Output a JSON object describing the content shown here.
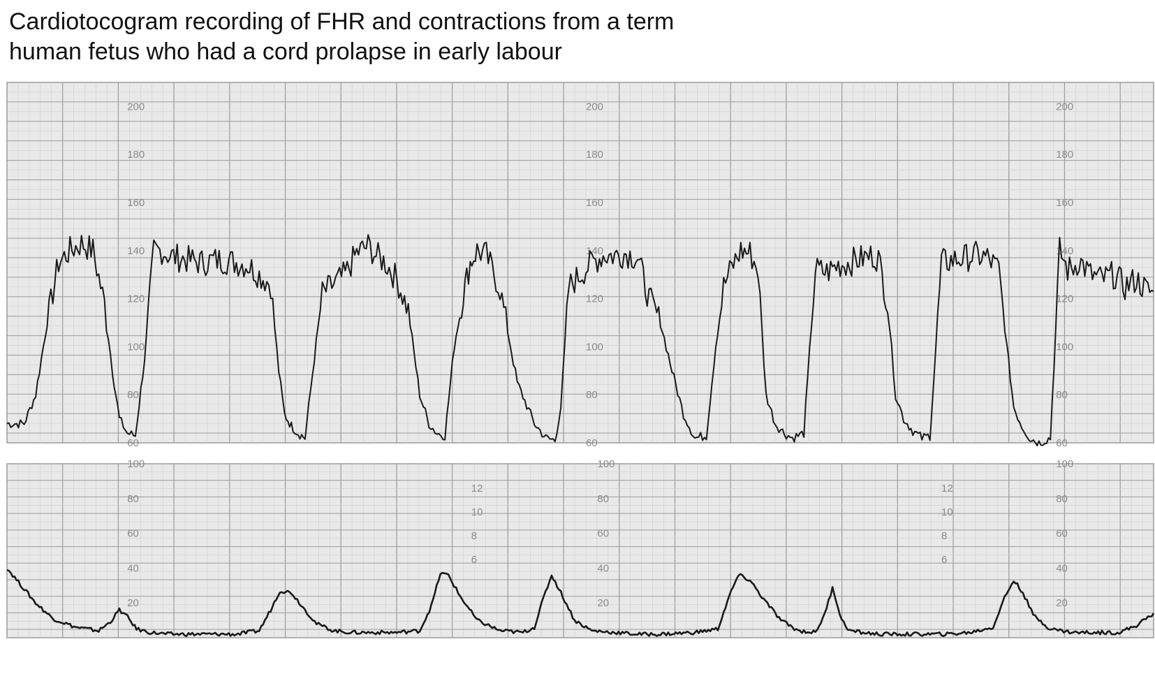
{
  "title_lines": [
    "Cardiotocogram recording of FHR and contractions from a term",
    "human fetus who had a cord prolapse in early labour"
  ],
  "colors": {
    "paper": "#e9e9e9",
    "grid_major": "#9a9a9a",
    "grid_minor": "#cfcfcf",
    "trace": "#1a1a1a",
    "tick_text": "#8a8a8a"
  },
  "chart_data": [
    {
      "type": "line",
      "name": "FHR",
      "ylim": [
        60,
        210
      ],
      "xlim": [
        0,
        100
      ],
      "tick_labels": [
        "200",
        "180",
        "160",
        "140",
        "120",
        "100",
        "80",
        "60"
      ],
      "tick_label_values": [
        200,
        180,
        160,
        140,
        120,
        100,
        80,
        60
      ],
      "tick_columns_x": [
        10,
        50,
        91
      ],
      "x": [
        0,
        1.5,
        2.5,
        3.5,
        4.5,
        5.5,
        6.5,
        7.5,
        8.5,
        9.2,
        9.8,
        10.5,
        11.2,
        12,
        12.8,
        13.5,
        14.2,
        15,
        16,
        17,
        18,
        19,
        20,
        21,
        22,
        23,
        23.7,
        24.2,
        24.8,
        25.4,
        26,
        26.8,
        27.5,
        28.5,
        29.5,
        30.5,
        31.5,
        32.2,
        33,
        34,
        35,
        36,
        36.8,
        37.5,
        38.2,
        39,
        39.8,
        40.4,
        41,
        41.8,
        43,
        44.5,
        46,
        47,
        47.8,
        48.3,
        49,
        50,
        51,
        52,
        53,
        54,
        55,
        56,
        57,
        58,
        59,
        60,
        61,
        61.8,
        62.5,
        63.2,
        64,
        64.8,
        65.5,
        66.2,
        67,
        67.8,
        68.5,
        69.5,
        70.5,
        71.5,
        72.5,
        73.5,
        74,
        74.8,
        75.5,
        76,
        76.8,
        77.5,
        78.2,
        79,
        79.8,
        80.5,
        81.5,
        82.5,
        83.5,
        84.5,
        85.5,
        86.5,
        87.2,
        87.8,
        88.5,
        89.2,
        90,
        91,
        91.8,
        92.5,
        93,
        93.5,
        94.5,
        95.5,
        96.5,
        97.5,
        98.5,
        99.5,
        100
      ],
      "y": [
        68,
        68,
        80,
        110,
        135,
        140,
        143,
        140,
        118,
        90,
        70,
        64,
        63,
        95,
        140,
        140,
        138,
        137,
        136,
        135,
        136,
        136,
        135,
        134,
        130,
        126,
        90,
        72,
        67,
        64,
        62,
        95,
        122,
        126,
        130,
        139,
        142,
        138,
        135,
        128,
        115,
        80,
        68,
        64,
        63,
        100,
        122,
        135,
        140,
        138,
        124,
        85,
        68,
        62,
        61,
        75,
        125,
        130,
        135,
        138,
        138,
        139,
        137,
        120,
        110,
        90,
        72,
        62,
        63,
        100,
        125,
        133,
        140,
        139,
        132,
        80,
        68,
        64,
        62,
        64,
        132,
        131,
        134,
        135,
        136,
        137,
        138,
        137,
        118,
        80,
        70,
        65,
        62,
        63,
        135,
        136,
        137,
        138,
        137,
        132,
        100,
        75,
        67,
        62,
        60,
        62,
        140,
        132,
        133,
        136,
        130,
        128,
        130,
        125,
        128,
        123,
        123
      ]
    },
    {
      "type": "line",
      "name": "Contractions",
      "ylim": [
        0,
        100
      ],
      "xlim": [
        0,
        100
      ],
      "tick_labels": [
        "100",
        "80",
        "60",
        "40",
        "20"
      ],
      "tick_label_values": [
        100,
        80,
        60,
        40,
        20
      ],
      "tick_columns_x": [
        10,
        51,
        91
      ],
      "x": [
        0,
        1,
        2.5,
        4,
        6,
        8,
        9,
        9.8,
        10.5,
        11.3,
        12.5,
        14,
        16,
        18,
        20,
        22,
        23,
        23.8,
        24.8,
        26,
        27,
        28.5,
        30,
        32,
        34,
        36,
        37,
        37.8,
        38.5,
        39.5,
        41,
        43,
        45,
        46,
        46.8,
        47.5,
        48.3,
        49.5,
        51,
        53,
        55,
        57,
        60,
        62,
        63,
        63.8,
        64.8,
        66,
        67.5,
        69,
        70.5,
        71.3,
        72,
        72.8,
        73.5,
        74.5,
        76,
        78,
        80,
        82,
        84,
        86,
        87,
        87.8,
        88.6,
        89.5,
        91,
        93,
        95,
        97,
        98.5,
        100
      ],
      "y": [
        40,
        32,
        20,
        11,
        6,
        4,
        9,
        16,
        12,
        5,
        3,
        2,
        2,
        2,
        2,
        4,
        16,
        27,
        26,
        16,
        8,
        4,
        3,
        3,
        3,
        4,
        18,
        37,
        36,
        24,
        10,
        4,
        3,
        6,
        23,
        36,
        26,
        10,
        4,
        3,
        2,
        2,
        3,
        5,
        24,
        36,
        33,
        22,
        10,
        4,
        3,
        13,
        29,
        10,
        4,
        3,
        2,
        2,
        2,
        2,
        3,
        6,
        23,
        33,
        26,
        13,
        5,
        3,
        3,
        3,
        7,
        14
      ]
    },
    {
      "type": "line",
      "name": "secondary-scale",
      "tick_labels": [
        "12",
        "10",
        "8",
        "6"
      ],
      "tick_columns_x": [
        40,
        81
      ]
    }
  ]
}
